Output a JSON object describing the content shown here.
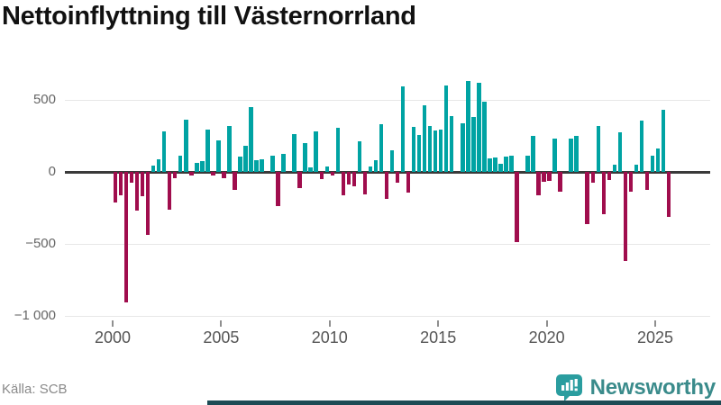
{
  "title": "Nettoinflyttning till Västernorrland",
  "source": "Källa: SCB",
  "branding": {
    "logo_text": "Newsworthy"
  },
  "colors": {
    "positive_bar": "#00a3a3",
    "negative_bar": "#a00d4d",
    "zero_line": "#3a3a3a",
    "gridline": "#e7e7e7",
    "brand_teal": "#3a8b8b",
    "brand_icon": "#2a9d9f",
    "footer_strip": "#1d4b55"
  },
  "chart_data": {
    "type": "bar",
    "title": "Nettoinflyttning till Västernorrland",
    "xlabel": "",
    "ylabel": "",
    "grid": "horizontal",
    "legend": "none",
    "ylim": [
      -1000,
      650
    ],
    "y_ticks": [
      500,
      0,
      -500,
      -1000
    ],
    "y_tick_labels": [
      "500",
      "0",
      "−500",
      "−1 000"
    ],
    "x_tick_labels": [
      "2000",
      "2005",
      "2010",
      "2015",
      "2020",
      "2025"
    ],
    "quarters": [
      "2000Q1",
      "2000Q2",
      "2000Q3",
      "2000Q4",
      "2001Q1",
      "2001Q2",
      "2001Q3",
      "2001Q4",
      "2002Q1",
      "2002Q2",
      "2002Q3",
      "2002Q4",
      "2003Q1",
      "2003Q2",
      "2003Q3",
      "2003Q4",
      "2004Q1",
      "2004Q2",
      "2004Q3",
      "2004Q4",
      "2005Q1",
      "2005Q2",
      "2005Q3",
      "2005Q4",
      "2006Q1",
      "2006Q2",
      "2006Q3",
      "2006Q4",
      "2007Q1",
      "2007Q2",
      "2007Q3",
      "2007Q4",
      "2008Q1",
      "2008Q2",
      "2008Q3",
      "2008Q4",
      "2009Q1",
      "2009Q2",
      "2009Q3",
      "2009Q4",
      "2010Q1",
      "2010Q2",
      "2010Q3",
      "2010Q4",
      "2011Q1",
      "2011Q2",
      "2011Q3",
      "2011Q4",
      "2012Q1",
      "2012Q2",
      "2012Q3",
      "2012Q4",
      "2013Q1",
      "2013Q2",
      "2013Q3",
      "2013Q4",
      "2014Q1",
      "2014Q2",
      "2014Q3",
      "2014Q4",
      "2015Q1",
      "2015Q2",
      "2015Q3",
      "2015Q4",
      "2016Q1",
      "2016Q2",
      "2016Q3",
      "2016Q4",
      "2017Q1",
      "2017Q2",
      "2017Q3",
      "2017Q4",
      "2018Q1",
      "2018Q2",
      "2018Q3",
      "2018Q4",
      "2019Q1",
      "2019Q2",
      "2019Q3",
      "2019Q4",
      "2020Q1",
      "2020Q2",
      "2020Q3",
      "2020Q4",
      "2021Q1",
      "2021Q2",
      "2021Q3",
      "2021Q4",
      "2022Q1",
      "2022Q2",
      "2022Q3",
      "2022Q4",
      "2023Q1",
      "2023Q2",
      "2023Q3",
      "2023Q4",
      "2024Q1",
      "2024Q2",
      "2024Q3",
      "2024Q4",
      "2025Q1",
      "2025Q2",
      "2025Q3"
    ],
    "values": [
      -210,
      -165,
      -905,
      -75,
      -270,
      -170,
      -435,
      45,
      85,
      280,
      -265,
      -45,
      110,
      360,
      -25,
      60,
      75,
      295,
      -25,
      220,
      -45,
      320,
      -125,
      105,
      180,
      450,
      80,
      85,
      0,
      115,
      -235,
      125,
      0,
      260,
      -110,
      200,
      30,
      280,
      -50,
      35,
      -25,
      305,
      -160,
      -85,
      -100,
      215,
      -155,
      35,
      80,
      330,
      -185,
      150,
      -75,
      595,
      -145,
      315,
      255,
      460,
      320,
      285,
      295,
      600,
      390,
      0,
      335,
      630,
      380,
      620,
      490,
      95,
      100,
      55,
      105,
      115,
      -490,
      0,
      110,
      250,
      -160,
      -70,
      -60,
      230,
      -135,
      0,
      230,
      250,
      0,
      -360,
      -75,
      320,
      -295,
      -55,
      50,
      275,
      -620,
      -135,
      50,
      355,
      -125,
      115,
      160,
      430,
      -315
    ]
  }
}
